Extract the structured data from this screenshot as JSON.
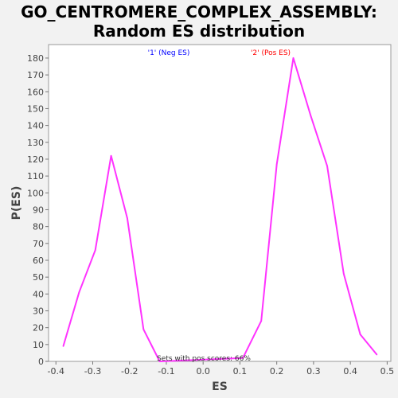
{
  "chart_data": {
    "type": "line",
    "title_line1": "GO_CENTROMERE_COMPLEX_ASSEMBLY:",
    "title_line2": "Random ES distribution",
    "xlabel": "ES",
    "ylabel": "P(ES)",
    "xlim": [
      -0.42,
      0.51
    ],
    "ylim": [
      0,
      188
    ],
    "x_ticks": [
      -0.4,
      -0.3,
      -0.2,
      -0.1,
      0.0,
      0.1,
      0.2,
      0.3,
      0.4,
      0.5
    ],
    "x_tick_labels": [
      "-0.4",
      "-0.3",
      "-0.2",
      "-0.1",
      "0.0",
      "0.1",
      "0.2",
      "0.3",
      "0.4",
      "0.5"
    ],
    "y_ticks": [
      0,
      10,
      20,
      30,
      40,
      50,
      60,
      70,
      80,
      90,
      100,
      110,
      120,
      130,
      140,
      150,
      160,
      170,
      180
    ],
    "grid": false,
    "series": [
      {
        "color": "#ff33ff",
        "x": [
          -0.38,
          -0.337,
          -0.293,
          -0.25,
          -0.206,
          -0.162,
          -0.118,
          0.108,
          0.158,
          0.2,
          0.245,
          0.292,
          0.337,
          0.382,
          0.427,
          0.472
        ],
        "y": [
          9,
          41,
          66,
          122,
          85,
          19,
          0,
          2,
          24,
          117,
          180,
          146,
          116,
          52,
          16,
          4
        ]
      }
    ],
    "annotations": {
      "neg_label": "'1' (Neg ES)",
      "neg_color": "#0000ff",
      "pos_label": "'2' (Pos ES)",
      "pos_color": "#ff0000",
      "footer": "Sets with pos scores: 66%"
    }
  }
}
